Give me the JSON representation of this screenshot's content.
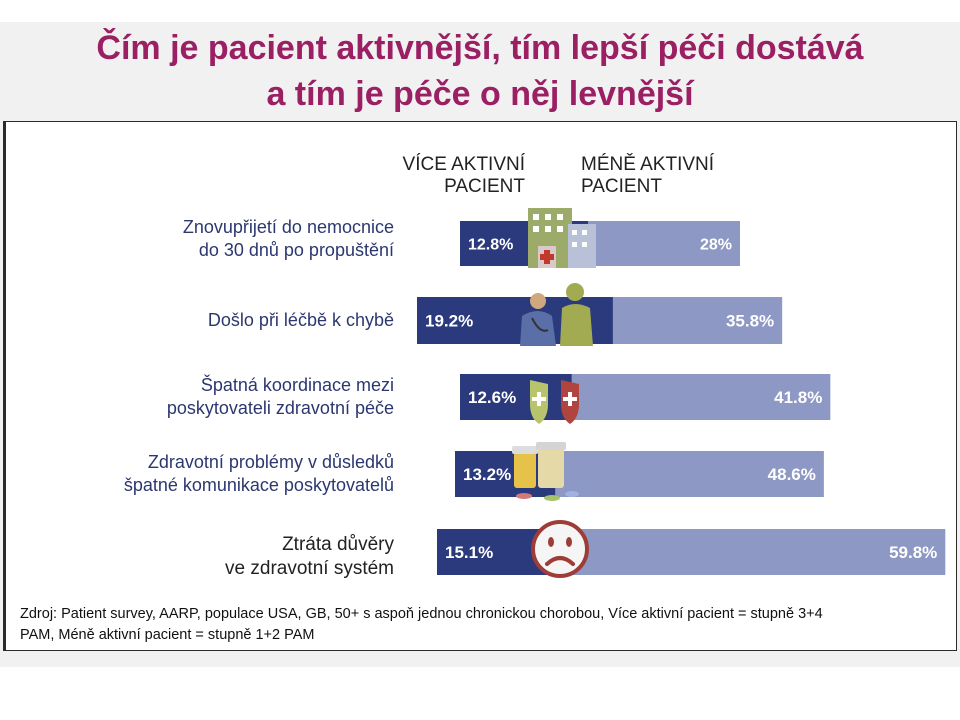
{
  "title": {
    "line1": "Čím je pacient aktivnější, tím lepší péči dostává",
    "line2": "a tím je péče o něj levnější"
  },
  "column_headers": {
    "active_line1": "VÍCE AKTIVNÍ",
    "active_line2": "PACIENT",
    "less_line1": "MÉNĚ AKTIVNÍ",
    "less_line2": "PACIENT"
  },
  "chart_data": {
    "type": "bar",
    "categories": [
      [
        "Znovupřijetí do nemocnice",
        "do 30 dnů po propuštění"
      ],
      [
        "Došlo při léčbě k chybě"
      ],
      [
        "Špatná koordinace mezi",
        "poskytovateli zdravotní péče"
      ],
      [
        "Zdravotní problémy v důsledků",
        "špatné komunikace poskytovatelů"
      ],
      [
        "Ztráta důvěry",
        "ve zdravotní systém"
      ]
    ],
    "series": [
      {
        "name": "VÍCE AKTIVNÍ PACIENT",
        "values": [
          12.8,
          19.2,
          12.6,
          13.2,
          15.1
        ],
        "labels": [
          "12.8%",
          "19.2%",
          "12.6%",
          "13.2%",
          "15.1%"
        ],
        "color": "#2b3a7c"
      },
      {
        "name": "MÉNĚ AKTIVNÍ PACIENT",
        "values": [
          28,
          35.8,
          41.8,
          48.6,
          59.8
        ],
        "labels": [
          "28%",
          "35.8%",
          "41.8%",
          "48.6%",
          "59.8%"
        ],
        "color": "#8d98c4"
      }
    ],
    "icons": [
      "hospital-icon",
      "doctor-patient-icon",
      "medical-shields-icon",
      "pill-bottles-icon",
      "sad-face-icon"
    ]
  },
  "source": {
    "line1": "Zdroj: Patient survey, AARP, populace USA, GB, 50+ s aspoň jednou chronickou chorobou, Více aktivní pacient = stupně 3+4",
    "line2": "PAM, Méně aktivní pacient = stupně 1+2 PAM"
  }
}
